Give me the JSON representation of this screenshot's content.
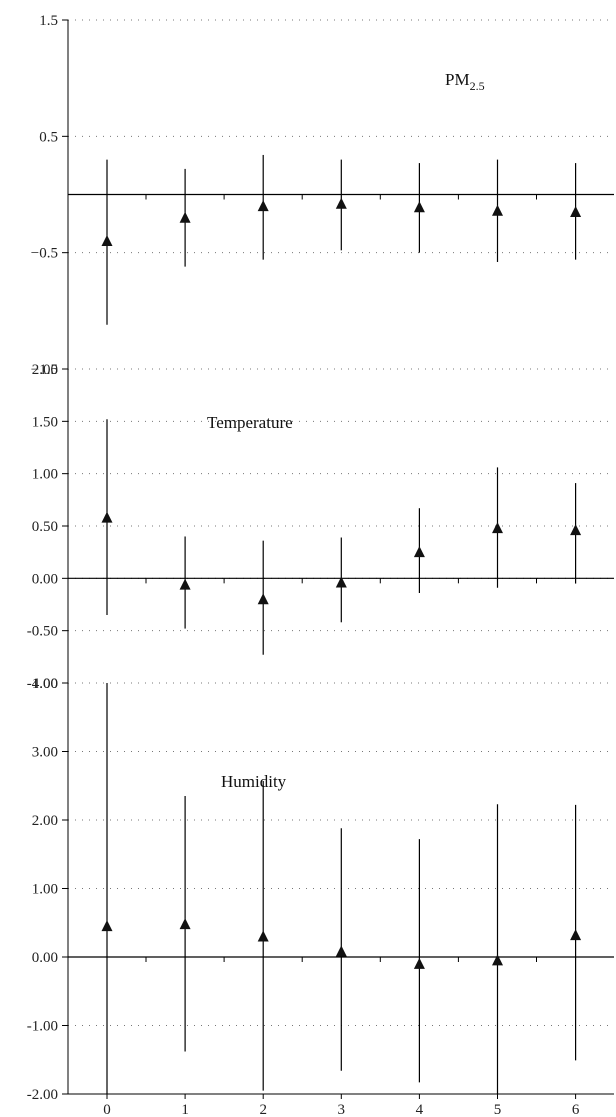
{
  "chart_data": [
    {
      "type": "scatter",
      "panel_label": "PM",
      "panel_label_subscript": "2.5",
      "x": [
        0,
        1,
        2,
        3,
        4,
        5,
        6
      ],
      "y": [
        -0.4,
        -0.2,
        -0.1,
        -0.08,
        -0.11,
        -0.14,
        -0.15
      ],
      "ci_low": [
        -1.12,
        -0.62,
        -0.56,
        -0.48,
        -0.5,
        -0.58,
        -0.56
      ],
      "ci_high": [
        0.3,
        0.22,
        0.34,
        0.3,
        0.27,
        0.3,
        0.27
      ],
      "ylim": [
        -1.5,
        1.5
      ],
      "yticks": [
        -1.5,
        -0.5,
        0.5,
        1.5
      ],
      "ytick_labels": [
        "−1.5",
        "−0.5",
        "0.5",
        "1.5"
      ],
      "reference_line": 0,
      "marker": "triangle",
      "grid": "dotted horizontal"
    },
    {
      "type": "scatter",
      "panel_label": "Temperature",
      "x": [
        0,
        1,
        2,
        3,
        4,
        5,
        6
      ],
      "y": [
        0.58,
        -0.06,
        -0.2,
        -0.04,
        0.25,
        0.48,
        0.46
      ],
      "ci_low": [
        -0.35,
        -0.48,
        -0.73,
        -0.42,
        -0.14,
        -0.09,
        -0.05
      ],
      "ci_high": [
        1.52,
        0.4,
        0.36,
        0.39,
        0.67,
        1.06,
        0.91
      ],
      "ylim": [
        -1.0,
        2.0
      ],
      "yticks": [
        -1.0,
        -0.5,
        0.0,
        0.5,
        1.0,
        1.5,
        2.0
      ],
      "ytick_labels": [
        "-1.00",
        "-0.50",
        "0.00",
        "0.50",
        "1.00",
        "1.50",
        "2.00"
      ],
      "reference_line": 0,
      "marker": "triangle",
      "grid": "dotted horizontal"
    },
    {
      "type": "scatter",
      "panel_label": "Humidity",
      "x": [
        0,
        1,
        2,
        3,
        4,
        5,
        6
      ],
      "y": [
        0.45,
        0.48,
        0.3,
        0.08,
        -0.1,
        -0.05,
        0.32
      ],
      "ci_low": [
        -2.0,
        -1.38,
        -1.95,
        -1.66,
        -1.83,
        -2.0,
        -1.51
      ],
      "ci_high": [
        4.0,
        2.35,
        2.57,
        1.88,
        1.72,
        2.23,
        2.22
      ],
      "ylim": [
        -2.0,
        4.0
      ],
      "yticks": [
        -2.0,
        -1.0,
        0.0,
        1.0,
        2.0,
        3.0,
        4.0
      ],
      "ytick_labels": [
        "-2.00",
        "-1.00",
        "0.00",
        "1.00",
        "2.00",
        "3.00",
        "4.00"
      ],
      "xtick_labels": [
        "0",
        "1",
        "2",
        "3",
        "4",
        "5",
        "6"
      ],
      "reference_line": 0,
      "marker": "triangle",
      "grid": "dotted horizontal"
    }
  ]
}
